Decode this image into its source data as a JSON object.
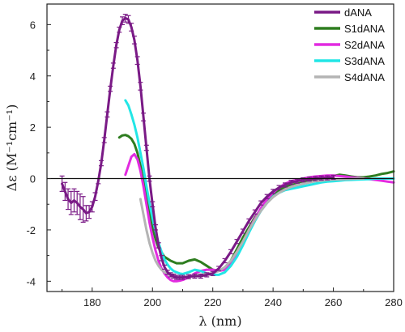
{
  "chart_data": {
    "type": "line",
    "title": "",
    "xlabel": "λ (nm)",
    "ylabel": "Δε (M⁻¹cm⁻¹)",
    "xlim": [
      165,
      280
    ],
    "ylim": [
      -4.4,
      6.8
    ],
    "x_ticks": [
      180,
      200,
      220,
      240,
      260,
      280
    ],
    "y_ticks": [
      -4,
      -2,
      0,
      2,
      4,
      6
    ],
    "zero_line": true,
    "grid": false,
    "legend_position": "top-right",
    "series": [
      {
        "name": "dANA",
        "color": "#7a1a86",
        "has_error_bars": true,
        "x": [
          170,
          171,
          172,
          173,
          174,
          175,
          176,
          177,
          178,
          179,
          180,
          181,
          182,
          183,
          184,
          185,
          186,
          187,
          188,
          189,
          190,
          191,
          192,
          193,
          194,
          195,
          196,
          197,
          198,
          199,
          200,
          201,
          202,
          203,
          204,
          205,
          206,
          207,
          208,
          209,
          210,
          212,
          214,
          216,
          218,
          220,
          222,
          224,
          226,
          228,
          230,
          232,
          234,
          236,
          238,
          240,
          242,
          244,
          246,
          248,
          250,
          252,
          254,
          256,
          258,
          260
        ],
        "y": [
          -0.2,
          -0.5,
          -0.8,
          -0.95,
          -0.85,
          -0.95,
          -1.1,
          -1.2,
          -1.35,
          -1.3,
          -1.1,
          -0.7,
          -0.1,
          0.6,
          1.5,
          2.5,
          3.5,
          4.4,
          5.2,
          5.8,
          6.15,
          6.25,
          6.2,
          5.9,
          5.4,
          4.6,
          3.6,
          2.4,
          1.2,
          0.0,
          -1.0,
          -1.9,
          -2.6,
          -3.1,
          -3.45,
          -3.65,
          -3.75,
          -3.8,
          -3.85,
          -3.85,
          -3.85,
          -3.82,
          -3.8,
          -3.8,
          -3.75,
          -3.7,
          -3.5,
          -3.2,
          -2.85,
          -2.45,
          -2.05,
          -1.65,
          -1.3,
          -0.95,
          -0.7,
          -0.5,
          -0.35,
          -0.25,
          -0.15,
          -0.1,
          -0.05,
          -0.02,
          0.0,
          0.02,
          0.03,
          0.05
        ],
        "err": [
          0.3,
          0.35,
          0.4,
          0.45,
          0.45,
          0.45,
          0.5,
          0.5,
          0.3,
          0.25,
          0.2,
          0.15,
          0.1,
          0.1,
          0.1,
          0.1,
          0.1,
          0.1,
          0.1,
          0.1,
          0.15,
          0.15,
          0.15,
          0.15,
          0.15,
          0.15,
          0.15,
          0.15,
          0.1,
          0.1,
          0.1,
          0.1,
          0.1,
          0.1,
          0.08,
          0.08,
          0.08,
          0.08,
          0.08,
          0.08,
          0.08,
          0.08,
          0.08,
          0.08,
          0.08,
          0.08,
          0.08,
          0.08,
          0.08,
          0.08,
          0.08,
          0.08,
          0.08,
          0.08,
          0.08,
          0.08,
          0.08,
          0.08,
          0.08,
          0.08,
          0.08,
          0.08,
          0.08,
          0.08,
          0.08,
          0.08
        ]
      },
      {
        "name": "S1dANA",
        "color": "#2e7d1f",
        "has_error_bars": false,
        "x": [
          189,
          190,
          191,
          192,
          193,
          194,
          195,
          196,
          197,
          198,
          199,
          200,
          201,
          202,
          204,
          206,
          208,
          210,
          212,
          214,
          216,
          218,
          220,
          222,
          224,
          226,
          228,
          230,
          232,
          234,
          236,
          238,
          240,
          242,
          244,
          246,
          248,
          250,
          252,
          254,
          256,
          258,
          260,
          262,
          264,
          266,
          268,
          270,
          272,
          274,
          276,
          278,
          280
        ],
        "y": [
          1.6,
          1.68,
          1.7,
          1.65,
          1.55,
          1.35,
          1.0,
          0.5,
          -0.1,
          -0.7,
          -1.3,
          -1.9,
          -2.35,
          -2.7,
          -3.05,
          -3.2,
          -3.3,
          -3.3,
          -3.2,
          -3.15,
          -3.25,
          -3.4,
          -3.55,
          -3.6,
          -3.5,
          -3.2,
          -2.75,
          -2.3,
          -1.9,
          -1.5,
          -1.2,
          -0.9,
          -0.65,
          -0.45,
          -0.35,
          -0.25,
          -0.2,
          -0.15,
          -0.1,
          -0.05,
          0.0,
          0.05,
          0.1,
          0.15,
          0.12,
          0.08,
          0.05,
          0.05,
          0.08,
          0.12,
          0.18,
          0.22,
          0.28
        ]
      },
      {
        "name": "S2dANA",
        "color": "#e22be0",
        "has_error_bars": false,
        "x": [
          191,
          192,
          193,
          194,
          195,
          196,
          197,
          198,
          199,
          200,
          201,
          202,
          203,
          204,
          205,
          206,
          207,
          208,
          209,
          210,
          212,
          214,
          216,
          218,
          220,
          222,
          224,
          226,
          228,
          230,
          232,
          234,
          236,
          238,
          240,
          242,
          244,
          246,
          248,
          250,
          252,
          254,
          256,
          258,
          260,
          262,
          264,
          266,
          268,
          270,
          272,
          274,
          276,
          278,
          280
        ],
        "y": [
          0.15,
          0.5,
          0.85,
          0.95,
          0.75,
          0.3,
          -0.3,
          -1.0,
          -1.7,
          -2.3,
          -2.8,
          -3.2,
          -3.5,
          -3.7,
          -3.85,
          -3.95,
          -4.0,
          -4.0,
          -3.98,
          -3.95,
          -3.85,
          -3.7,
          -3.6,
          -3.55,
          -3.55,
          -3.6,
          -3.55,
          -3.35,
          -3.0,
          -2.55,
          -2.0,
          -1.55,
          -1.15,
          -0.8,
          -0.55,
          -0.35,
          -0.2,
          -0.1,
          -0.05,
          0.0,
          0.05,
          0.08,
          0.1,
          0.12,
          0.12,
          0.1,
          0.08,
          0.05,
          0.03,
          0.0,
          -0.02,
          -0.05,
          -0.08,
          -0.12,
          -0.15
        ]
      },
      {
        "name": "S3dANA",
        "color": "#22e6e6",
        "has_error_bars": false,
        "x": [
          191,
          192,
          193,
          194,
          195,
          196,
          197,
          198,
          199,
          200,
          201,
          202,
          203,
          204,
          205,
          206,
          207,
          208,
          209,
          210,
          212,
          214,
          216,
          218,
          220,
          222,
          224,
          226,
          228,
          230,
          232,
          234,
          236,
          238,
          240,
          242,
          244,
          246,
          248,
          250,
          252,
          254,
          256,
          258,
          260,
          262,
          264,
          266,
          268,
          270,
          272,
          274,
          276,
          278,
          280
        ],
        "y": [
          3.05,
          2.85,
          2.5,
          2.1,
          1.6,
          1.0,
          0.4,
          -0.3,
          -0.95,
          -1.55,
          -2.05,
          -2.5,
          -2.85,
          -3.15,
          -3.35,
          -3.5,
          -3.6,
          -3.65,
          -3.7,
          -3.72,
          -3.65,
          -3.55,
          -3.6,
          -3.7,
          -3.75,
          -3.75,
          -3.65,
          -3.4,
          -3.05,
          -2.6,
          -2.1,
          -1.65,
          -1.25,
          -0.95,
          -0.7,
          -0.55,
          -0.45,
          -0.4,
          -0.35,
          -0.3,
          -0.25,
          -0.2,
          -0.15,
          -0.12,
          -0.1,
          -0.08,
          -0.06,
          -0.05,
          -0.04,
          -0.03,
          -0.02,
          0.0,
          0.0,
          0.0,
          0.0
        ]
      },
      {
        "name": "S4dANA",
        "color": "#b4b4b4",
        "has_error_bars": false,
        "x": [
          196,
          197,
          198,
          199,
          200,
          201,
          202,
          203,
          204,
          205,
          206,
          207,
          208,
          210,
          212,
          214,
          216,
          218,
          220,
          222,
          224,
          226,
          228,
          230,
          232,
          234,
          236,
          238,
          240,
          242,
          244,
          246,
          248,
          250,
          252,
          254,
          256,
          258,
          260,
          262,
          264,
          266,
          268,
          270
        ],
        "y": [
          -0.8,
          -1.4,
          -2.0,
          -2.5,
          -2.9,
          -3.2,
          -3.4,
          -3.55,
          -3.65,
          -3.72,
          -3.78,
          -3.82,
          -3.85,
          -3.85,
          -3.82,
          -3.78,
          -3.75,
          -3.72,
          -3.68,
          -3.6,
          -3.45,
          -3.2,
          -2.85,
          -2.45,
          -2.0,
          -1.6,
          -1.25,
          -0.95,
          -0.72,
          -0.55,
          -0.42,
          -0.32,
          -0.25,
          -0.2,
          -0.15,
          -0.1,
          -0.08,
          -0.05,
          -0.04,
          -0.03,
          -0.02,
          -0.01,
          0.0,
          0.0
        ]
      }
    ]
  }
}
